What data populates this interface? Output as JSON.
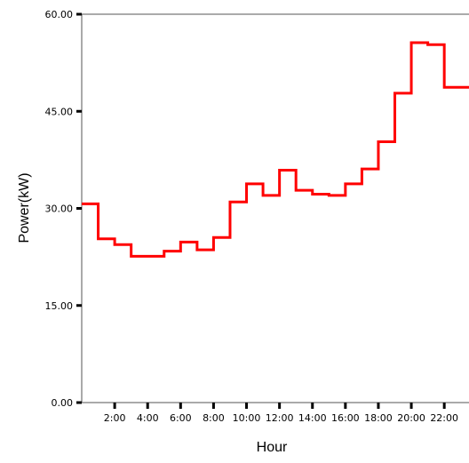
{
  "chart_data": {
    "type": "line",
    "step": true,
    "xlabel": "Hour",
    "ylabel": "Power(kW)",
    "ylim": [
      0,
      60
    ],
    "yticks": [
      "0.00",
      "15.00",
      "30.00",
      "45.00",
      "60.00"
    ],
    "xlim": [
      0,
      23.5
    ],
    "xtick_labels": [
      "2:00",
      "4:00",
      "6:00",
      "8:00",
      "10:00",
      "12:00",
      "14:00",
      "16:00",
      "18:00",
      "20:00",
      "22:00"
    ],
    "xtick_hours": [
      2,
      4,
      6,
      8,
      10,
      12,
      14,
      16,
      18,
      20,
      22
    ],
    "hours": [
      0,
      1,
      2,
      3,
      4,
      5,
      6,
      7,
      8,
      9,
      10,
      11,
      12,
      13,
      14,
      15,
      16,
      17,
      18,
      19,
      20,
      21,
      22,
      23
    ],
    "values": [
      30.7,
      25.3,
      24.4,
      22.6,
      22.6,
      23.4,
      24.8,
      23.6,
      25.5,
      31.0,
      33.8,
      32.0,
      35.9,
      32.8,
      32.2,
      32.0,
      33.8,
      36.1,
      40.3,
      47.8,
      55.6,
      55.3,
      48.7,
      48.7
    ],
    "line_color": "#ff0000",
    "grid": false
  }
}
